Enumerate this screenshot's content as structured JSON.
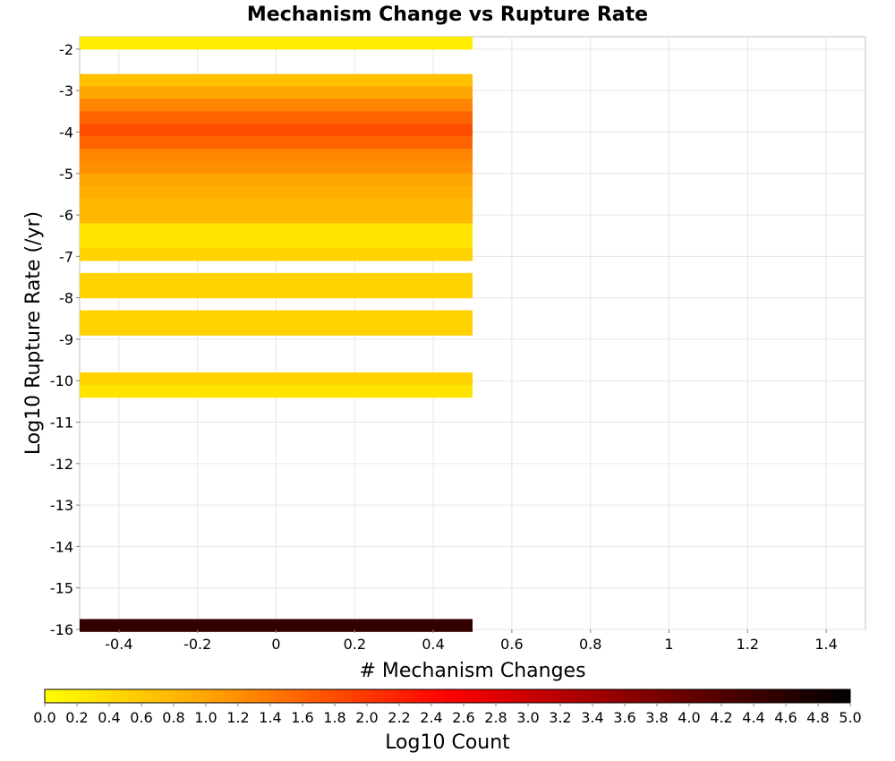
{
  "chart_data": {
    "type": "heatmap",
    "title": "Mechanism Change vs Rupture Rate",
    "xlabel": "# Mechanism Changes",
    "ylabel": "Log10 Rupture Rate (/yr)",
    "xlim": [
      -0.5,
      1.5
    ],
    "ylim": [
      -16,
      -1.7
    ],
    "xticks": [
      -0.4,
      -0.2,
      0,
      0.2,
      0.4,
      0.6,
      0.8,
      1,
      1.2,
      1.4
    ],
    "xtick_labels": [
      "-0.4",
      "-0.2",
      "0",
      "0.2",
      "0.4",
      "0.6",
      "0.8",
      "1",
      "1.2",
      "1.4"
    ],
    "yticks": [
      -2,
      -3,
      -4,
      -5,
      -6,
      -7,
      -8,
      -9,
      -10,
      -11,
      -12,
      -13,
      -14,
      -15,
      -16
    ],
    "ytick_labels": [
      "-2",
      "-3",
      "-4",
      "-5",
      "-6",
      "-7",
      "-8",
      "-9",
      "-10",
      "-11",
      "-12",
      "-13",
      "-14",
      "-15",
      "-16"
    ],
    "grid": true,
    "cell_width": 1.0,
    "cell_height": 0.3,
    "cells": [
      {
        "x": 0,
        "y": -1.85,
        "value": 0.2
      },
      {
        "x": 0,
        "y": -2.75,
        "value": 0.7
      },
      {
        "x": 0,
        "y": -3.05,
        "value": 1.0
      },
      {
        "x": 0,
        "y": -3.35,
        "value": 1.3
      },
      {
        "x": 0,
        "y": -3.65,
        "value": 1.6
      },
      {
        "x": 0,
        "y": -3.95,
        "value": 1.8
      },
      {
        "x": 0,
        "y": -4.25,
        "value": 1.6
      },
      {
        "x": 0,
        "y": -4.55,
        "value": 1.3
      },
      {
        "x": 0,
        "y": -4.85,
        "value": 1.2
      },
      {
        "x": 0,
        "y": -5.15,
        "value": 1.0
      },
      {
        "x": 0,
        "y": -5.45,
        "value": 0.9
      },
      {
        "x": 0,
        "y": -5.75,
        "value": 0.8
      },
      {
        "x": 0,
        "y": -6.05,
        "value": 0.8
      },
      {
        "x": 0,
        "y": -6.35,
        "value": 0.3
      },
      {
        "x": 0,
        "y": -6.65,
        "value": 0.3
      },
      {
        "x": 0,
        "y": -6.95,
        "value": 0.5
      },
      {
        "x": 0,
        "y": -7.55,
        "value": 0.5
      },
      {
        "x": 0,
        "y": -7.85,
        "value": 0.5
      },
      {
        "x": 0,
        "y": -8.45,
        "value": 0.5
      },
      {
        "x": 0,
        "y": -8.75,
        "value": 0.5
      },
      {
        "x": 0,
        "y": -9.95,
        "value": 0.5
      },
      {
        "x": 0,
        "y": -10.25,
        "value": 0.3
      },
      {
        "x": 0,
        "y": -15.9,
        "value": 4.5
      }
    ],
    "colorbar": {
      "label": "Log10 Count",
      "range": [
        0,
        5
      ],
      "ticks": [
        "0.0",
        "0.2",
        "0.4",
        "0.6",
        "0.8",
        "1.0",
        "1.2",
        "1.4",
        "1.6",
        "1.8",
        "2.0",
        "2.2",
        "2.4",
        "2.6",
        "2.8",
        "3.0",
        "3.2",
        "3.4",
        "3.6",
        "3.8",
        "4.0",
        "4.2",
        "4.4",
        "4.6",
        "4.8",
        "5.0"
      ],
      "colors": [
        "#ffff00",
        "#ffa500",
        "#ff0000",
        "#7f0000",
        "#000000"
      ],
      "color_stops": [
        0,
        1,
        2.5,
        3.75,
        5
      ]
    }
  }
}
